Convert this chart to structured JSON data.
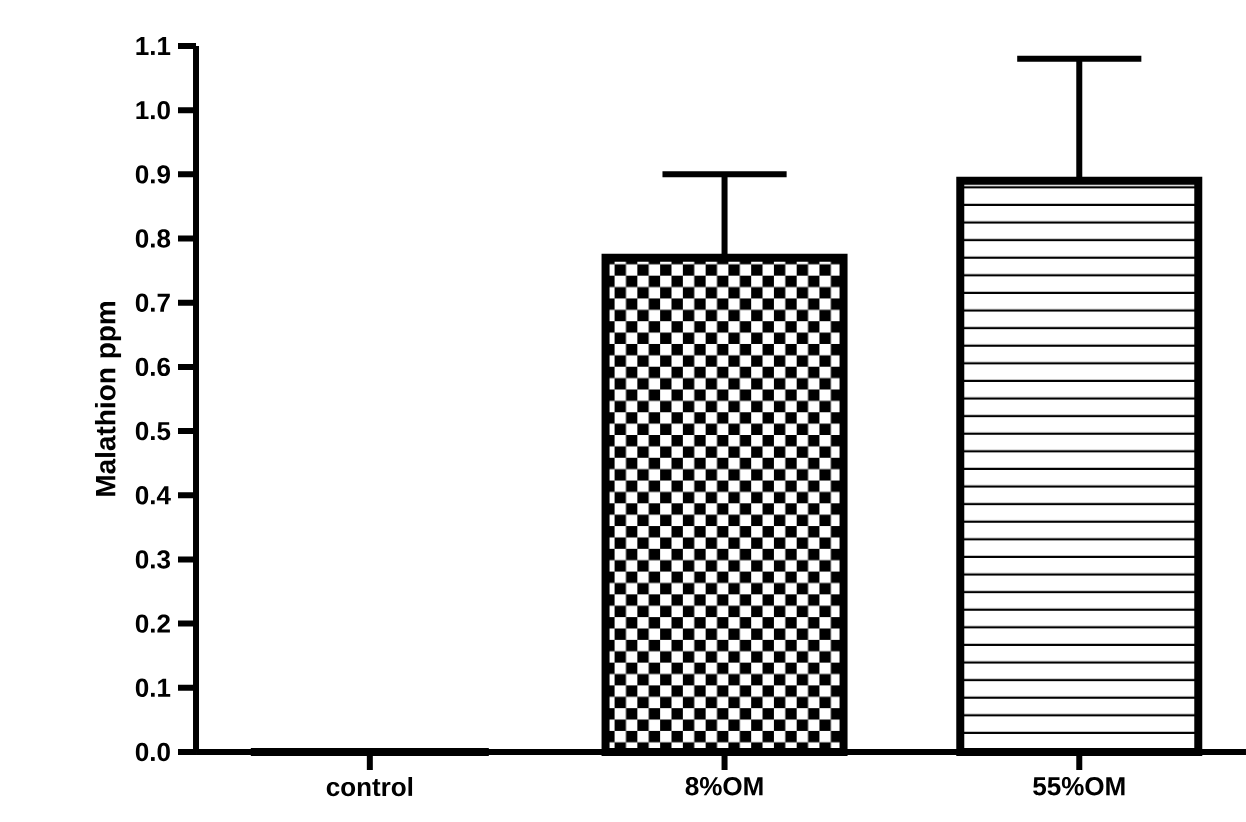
{
  "chart_data": {
    "type": "bar",
    "ylabel": "Malathion ppm",
    "categories": [
      "control",
      "8%OM",
      "55%OM"
    ],
    "values": [
      0,
      0.77,
      0.89
    ],
    "errors": [
      null,
      [
        0.77,
        0.9
      ],
      [
        0.89,
        1.08
      ]
    ],
    "color": "#000000",
    "ylim": [
      0,
      1.1
    ],
    "yticks": [
      {
        "value": 0,
        "label": "0.0"
      },
      0.1,
      0.2,
      0.3,
      0.4,
      0.5,
      0.6,
      0.7,
      0.8,
      0.9,
      {
        "value": 1,
        "label": "1.0"
      },
      1.1
    ],
    "grid": false
  }
}
